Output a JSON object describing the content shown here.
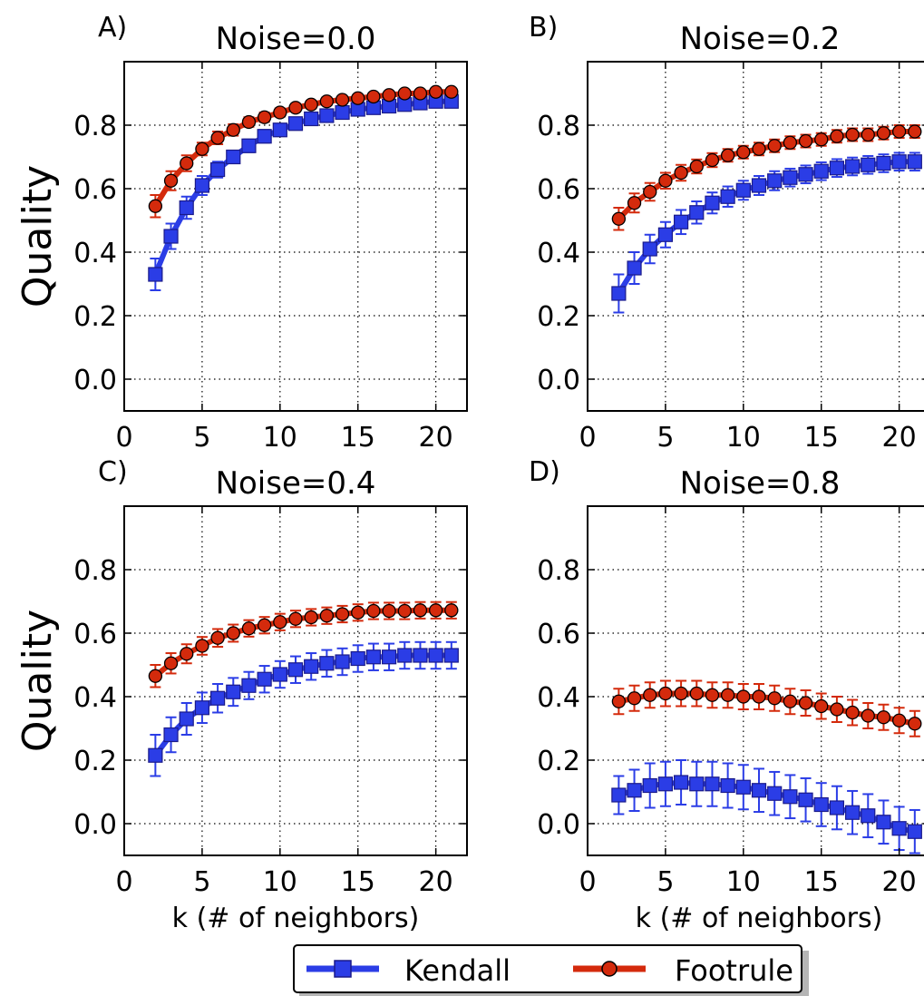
{
  "figure": {
    "shared": {
      "ylabel": "Quality",
      "xlabel": "k (# of neighbors)",
      "x_ticks": [
        0,
        5,
        10,
        15,
        20
      ],
      "y_ticks": [
        0.0,
        0.2,
        0.4,
        0.6,
        0.8
      ],
      "y_tick_labels": [
        "0.0",
        "0.2",
        "0.4",
        "0.6",
        "0.8"
      ],
      "grid": "dotted",
      "colors": {
        "Kendall": "#2b3de6",
        "Footrule": "#d42a0c"
      }
    },
    "legend": {
      "placement": "bottom-center",
      "entries": [
        "Kendall",
        "Footrule"
      ]
    }
  },
  "chart_data": [
    {
      "type": "line",
      "panel_label": "A)",
      "title": "Noise=0.0",
      "xlim": [
        0,
        22
      ],
      "ylim": [
        -0.1,
        1.0
      ],
      "x": [
        2,
        3,
        4,
        5,
        6,
        7,
        8,
        9,
        10,
        11,
        12,
        13,
        14,
        15,
        16,
        17,
        18,
        19,
        20,
        21
      ],
      "series": [
        {
          "name": "Kendall",
          "marker": "square",
          "values": [
            0.33,
            0.45,
            0.54,
            0.61,
            0.66,
            0.7,
            0.735,
            0.765,
            0.785,
            0.805,
            0.82,
            0.83,
            0.84,
            0.85,
            0.855,
            0.86,
            0.865,
            0.87,
            0.875,
            0.875
          ],
          "errors": [
            0.05,
            0.04,
            0.035,
            0.03,
            0.025,
            0.02,
            0.02,
            0.02,
            0.018,
            0.015,
            0.015,
            0.015,
            0.012,
            0.012,
            0.012,
            0.012,
            0.01,
            0.01,
            0.01,
            0.01
          ]
        },
        {
          "name": "Footrule",
          "marker": "circle",
          "values": [
            0.545,
            0.625,
            0.68,
            0.725,
            0.76,
            0.785,
            0.81,
            0.825,
            0.84,
            0.855,
            0.865,
            0.875,
            0.88,
            0.885,
            0.89,
            0.895,
            0.9,
            0.9,
            0.905,
            0.905
          ],
          "errors": [
            0.035,
            0.03,
            0.025,
            0.02,
            0.02,
            0.018,
            0.015,
            0.015,
            0.013,
            0.012,
            0.012,
            0.012,
            0.01,
            0.01,
            0.01,
            0.01,
            0.01,
            0.01,
            0.01,
            0.01
          ]
        }
      ]
    },
    {
      "type": "line",
      "panel_label": "B)",
      "title": "Noise=0.2",
      "xlim": [
        0,
        22
      ],
      "ylim": [
        -0.1,
        1.0
      ],
      "x": [
        2,
        3,
        4,
        5,
        6,
        7,
        8,
        9,
        10,
        11,
        12,
        13,
        14,
        15,
        16,
        17,
        18,
        19,
        20,
        21
      ],
      "series": [
        {
          "name": "Kendall",
          "marker": "square",
          "values": [
            0.27,
            0.35,
            0.41,
            0.455,
            0.495,
            0.525,
            0.555,
            0.575,
            0.595,
            0.61,
            0.625,
            0.635,
            0.645,
            0.655,
            0.665,
            0.67,
            0.675,
            0.68,
            0.685,
            0.685
          ],
          "errors": [
            0.06,
            0.05,
            0.045,
            0.04,
            0.038,
            0.035,
            0.033,
            0.032,
            0.03,
            0.03,
            0.03,
            0.028,
            0.028,
            0.028,
            0.028,
            0.028,
            0.028,
            0.028,
            0.028,
            0.028
          ]
        },
        {
          "name": "Footrule",
          "marker": "circle",
          "values": [
            0.505,
            0.555,
            0.59,
            0.625,
            0.65,
            0.67,
            0.69,
            0.705,
            0.715,
            0.725,
            0.735,
            0.745,
            0.75,
            0.755,
            0.765,
            0.77,
            0.77,
            0.775,
            0.78,
            0.78
          ],
          "errors": [
            0.035,
            0.03,
            0.028,
            0.025,
            0.025,
            0.022,
            0.022,
            0.02,
            0.02,
            0.02,
            0.02,
            0.02,
            0.02,
            0.02,
            0.02,
            0.02,
            0.02,
            0.02,
            0.02,
            0.02
          ]
        }
      ]
    },
    {
      "type": "line",
      "panel_label": "C)",
      "title": "Noise=0.4",
      "xlim": [
        0,
        22
      ],
      "ylim": [
        -0.1,
        1.0
      ],
      "x": [
        2,
        3,
        4,
        5,
        6,
        7,
        8,
        9,
        10,
        11,
        12,
        13,
        14,
        15,
        16,
        17,
        18,
        19,
        20,
        21
      ],
      "series": [
        {
          "name": "Kendall",
          "marker": "square",
          "values": [
            0.215,
            0.28,
            0.33,
            0.365,
            0.395,
            0.415,
            0.435,
            0.455,
            0.47,
            0.485,
            0.495,
            0.505,
            0.51,
            0.52,
            0.525,
            0.525,
            0.53,
            0.53,
            0.53,
            0.53
          ],
          "errors": [
            0.065,
            0.055,
            0.05,
            0.048,
            0.045,
            0.044,
            0.043,
            0.042,
            0.042,
            0.042,
            0.042,
            0.042,
            0.042,
            0.042,
            0.042,
            0.042,
            0.042,
            0.042,
            0.042,
            0.042
          ]
        },
        {
          "name": "Footrule",
          "marker": "circle",
          "values": [
            0.465,
            0.505,
            0.535,
            0.56,
            0.585,
            0.6,
            0.615,
            0.625,
            0.635,
            0.645,
            0.65,
            0.655,
            0.66,
            0.665,
            0.67,
            0.67,
            0.67,
            0.672,
            0.672,
            0.672
          ],
          "errors": [
            0.035,
            0.032,
            0.03,
            0.028,
            0.028,
            0.027,
            0.026,
            0.026,
            0.026,
            0.026,
            0.026,
            0.026,
            0.026,
            0.026,
            0.026,
            0.026,
            0.026,
            0.026,
            0.026,
            0.026
          ]
        }
      ]
    },
    {
      "type": "line",
      "panel_label": "D)",
      "title": "Noise=0.8",
      "xlim": [
        0,
        22
      ],
      "ylim": [
        -0.1,
        1.0
      ],
      "x": [
        2,
        3,
        4,
        5,
        6,
        7,
        8,
        9,
        10,
        11,
        12,
        13,
        14,
        15,
        16,
        17,
        18,
        19,
        20,
        21
      ],
      "series": [
        {
          "name": "Kendall",
          "marker": "square",
          "values": [
            0.09,
            0.105,
            0.12,
            0.125,
            0.13,
            0.125,
            0.125,
            0.12,
            0.115,
            0.105,
            0.095,
            0.085,
            0.075,
            0.06,
            0.05,
            0.035,
            0.025,
            0.005,
            -0.015,
            -0.025
          ],
          "errors": [
            0.06,
            0.065,
            0.07,
            0.07,
            0.07,
            0.07,
            0.07,
            0.07,
            0.07,
            0.068,
            0.068,
            0.068,
            0.068,
            0.068,
            0.068,
            0.068,
            0.068,
            0.068,
            0.068,
            0.068
          ]
        },
        {
          "name": "Footrule",
          "marker": "circle",
          "values": [
            0.385,
            0.395,
            0.405,
            0.41,
            0.41,
            0.41,
            0.405,
            0.405,
            0.4,
            0.4,
            0.395,
            0.385,
            0.38,
            0.37,
            0.36,
            0.35,
            0.34,
            0.335,
            0.325,
            0.315
          ],
          "errors": [
            0.04,
            0.04,
            0.04,
            0.04,
            0.04,
            0.04,
            0.04,
            0.04,
            0.04,
            0.04,
            0.04,
            0.04,
            0.04,
            0.04,
            0.04,
            0.04,
            0.04,
            0.04,
            0.04,
            0.04
          ]
        }
      ]
    }
  ]
}
